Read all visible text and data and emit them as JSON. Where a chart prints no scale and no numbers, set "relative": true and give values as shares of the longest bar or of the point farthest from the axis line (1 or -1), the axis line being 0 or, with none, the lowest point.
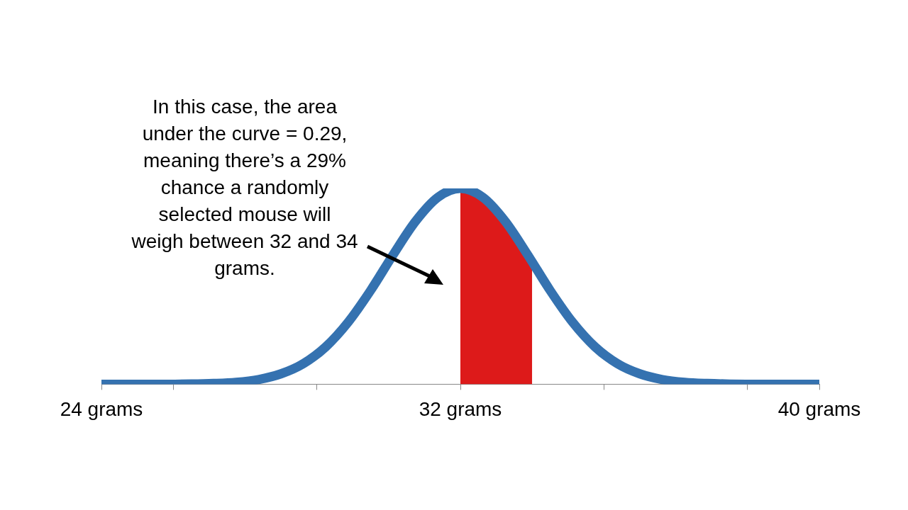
{
  "chart_data": {
    "type": "line",
    "relative": true,
    "x": [
      24,
      24.5,
      25,
      25.5,
      26,
      26.5,
      27,
      27.5,
      28,
      28.5,
      29,
      29.5,
      30,
      30.5,
      31,
      31.5,
      32,
      32.5,
      33,
      33.5,
      34,
      34.5,
      35,
      35.5,
      36,
      36.5,
      37,
      37.5,
      38,
      38.5,
      39,
      39.5,
      40
    ],
    "series": [
      {
        "type": "area",
        "color": "#dd1a1a",
        "x": [
          32,
          32.5,
          33,
          33.5,
          33.6
        ],
        "values": [
          1,
          0.955,
          0.832,
          0.661,
          0.625
        ]
      },
      {
        "color": "#3572b0",
        "values": [
          0,
          0,
          0,
          0,
          0.001,
          0.004,
          0.01,
          0.024,
          0.053,
          0.105,
          0.191,
          0.317,
          0.479,
          0.661,
          0.832,
          0.955,
          1,
          0.955,
          0.832,
          0.661,
          0.479,
          0.317,
          0.191,
          0.105,
          0.053,
          0.024,
          0.01,
          0.004,
          0.001,
          0,
          0,
          0,
          0
        ]
      }
    ],
    "xlim": [
      24,
      40
    ],
    "xticks": [
      {
        "value": 24,
        "label": "24 grams"
      },
      {
        "value": 25.6,
        "label": null
      },
      {
        "value": 28.8,
        "label": null
      },
      {
        "value": 32,
        "label": "32 grams"
      },
      {
        "value": 35.2,
        "label": null
      },
      {
        "value": 38.4,
        "label": null
      },
      {
        "value": 40,
        "label": "40 grams"
      }
    ],
    "annotations": [
      "In this case, the area under the curve = 0.29, meaning there’s a 29% chance a randomly selected mouse will weigh between 32 and 34 grams."
    ],
    "legend": false,
    "grid": false,
    "marker": "none",
    "line_style": "solid"
  }
}
